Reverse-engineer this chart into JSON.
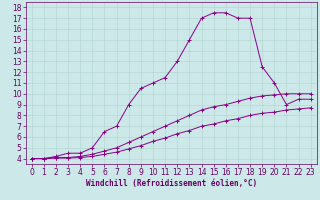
{
  "xlabel": "Windchill (Refroidissement éolien,°C)",
  "background_color": "#cde8e8",
  "grid_color": "#b0d4cc",
  "line_color": "#880088",
  "xlim": [
    -0.5,
    23.5
  ],
  "ylim": [
    3.5,
    18.5
  ],
  "xticks": [
    0,
    1,
    2,
    3,
    4,
    5,
    6,
    7,
    8,
    9,
    10,
    11,
    12,
    13,
    14,
    15,
    16,
    17,
    18,
    19,
    20,
    21,
    22,
    23
  ],
  "yticks": [
    4,
    5,
    6,
    7,
    8,
    9,
    10,
    11,
    12,
    13,
    14,
    15,
    16,
    17,
    18
  ],
  "main_line_x": [
    0,
    1,
    2,
    3,
    4,
    5,
    6,
    7,
    8,
    9,
    10,
    11,
    12,
    13,
    14,
    15,
    16,
    17,
    18,
    19,
    20,
    21,
    22,
    23
  ],
  "main_line_y": [
    4,
    4,
    4.2,
    4.5,
    4.5,
    5.0,
    6.5,
    7.0,
    9.0,
    10.5,
    11.0,
    11.5,
    13.0,
    15.0,
    17.0,
    17.5,
    17.5,
    17.0,
    17.0,
    12.5,
    11.0,
    9.0,
    9.5,
    9.5
  ],
  "line2_x": [
    0,
    1,
    2,
    3,
    4,
    5,
    6,
    7,
    8,
    9,
    10,
    11,
    12,
    13,
    14,
    15,
    16,
    17,
    18,
    19,
    20,
    21,
    22,
    23
  ],
  "line2_y": [
    4,
    4,
    4.1,
    4.1,
    4.2,
    4.4,
    4.7,
    5.0,
    5.5,
    6.0,
    6.5,
    7.0,
    7.5,
    8.0,
    8.5,
    8.8,
    9.0,
    9.3,
    9.6,
    9.8,
    9.9,
    10.0,
    10.0,
    10.0
  ],
  "line3_x": [
    0,
    1,
    2,
    3,
    4,
    5,
    6,
    7,
    8,
    9,
    10,
    11,
    12,
    13,
    14,
    15,
    16,
    17,
    18,
    19,
    20,
    21,
    22,
    23
  ],
  "line3_y": [
    4,
    4,
    4.05,
    4.05,
    4.1,
    4.2,
    4.4,
    4.6,
    4.9,
    5.2,
    5.6,
    5.9,
    6.3,
    6.6,
    7.0,
    7.2,
    7.5,
    7.7,
    8.0,
    8.2,
    8.3,
    8.5,
    8.6,
    8.7
  ],
  "tick_fontsize": 5.5,
  "xlabel_fontsize": 5.5
}
